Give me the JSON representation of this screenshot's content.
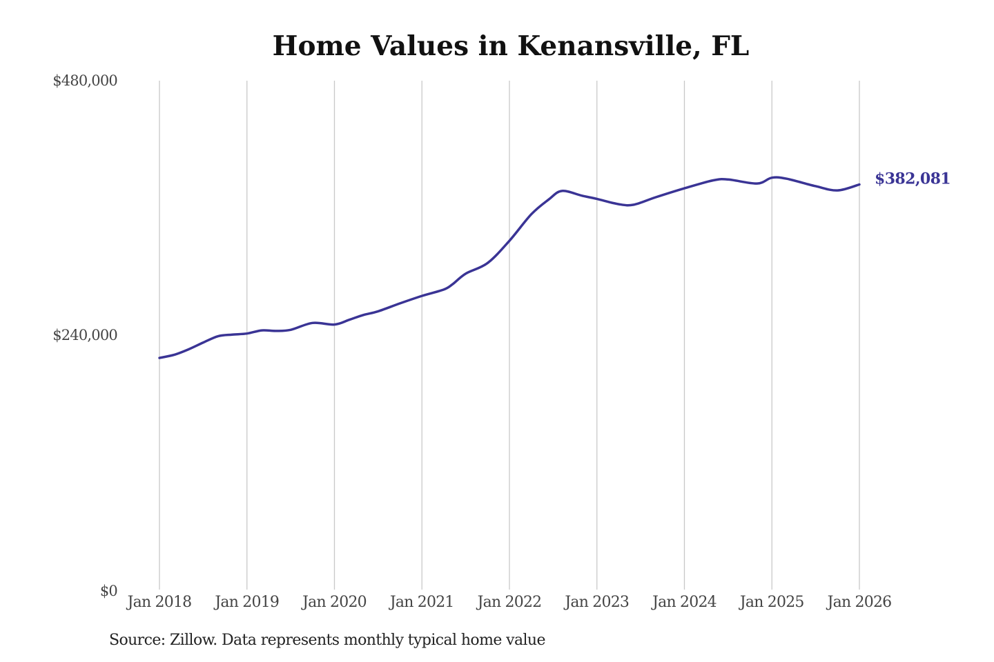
{
  "chart_data": {
    "type": "line",
    "title": "Home Values in Kenansville, FL",
    "xlabel": "",
    "ylabel": "",
    "source": "Source: Zillow. Data represents monthly typical home value",
    "ylim": [
      0,
      480000
    ],
    "yticks": [
      0,
      240000,
      480000
    ],
    "ytick_labels": [
      "$0",
      "$240,000",
      "$480,000"
    ],
    "xlim": [
      2018,
      2026
    ],
    "xticks": [
      2018,
      2019,
      2020,
      2021,
      2022,
      2023,
      2024,
      2025,
      2026
    ],
    "xtick_labels": [
      "Jan 2018",
      "Jan 2019",
      "Jan 2020",
      "Jan 2021",
      "Jan 2022",
      "Jan 2023",
      "Jan 2024",
      "Jan 2025",
      "Jan 2026"
    ],
    "grid": "vertical",
    "color": "#3a3495",
    "end_label": "$382,081",
    "series": [
      {
        "name": "Typical home value",
        "x": [
          2018.0,
          2018.17,
          2018.33,
          2018.5,
          2018.67,
          2018.83,
          2019.0,
          2019.17,
          2019.33,
          2019.5,
          2019.75,
          2020.0,
          2020.17,
          2020.33,
          2020.5,
          2020.75,
          2021.0,
          2021.25,
          2021.35,
          2021.5,
          2021.75,
          2022.0,
          2022.25,
          2022.45,
          2022.6,
          2022.83,
          2023.0,
          2023.25,
          2023.42,
          2023.67,
          2024.0,
          2024.33,
          2024.5,
          2024.83,
          2025.0,
          2025.17,
          2025.5,
          2025.75,
          2026.0
        ],
        "y": [
          218500,
          221500,
          226500,
          233000,
          239000,
          240500,
          241500,
          244500,
          244000,
          245000,
          251500,
          250000,
          254500,
          259000,
          262500,
          270000,
          277000,
          283000,
          288000,
          298000,
          308000,
          329000,
          354000,
          368000,
          376000,
          371500,
          368500,
          363500,
          363000,
          370000,
          378500,
          386000,
          386800,
          383000,
          388500,
          387500,
          380500,
          376500,
          382081
        ]
      }
    ]
  }
}
